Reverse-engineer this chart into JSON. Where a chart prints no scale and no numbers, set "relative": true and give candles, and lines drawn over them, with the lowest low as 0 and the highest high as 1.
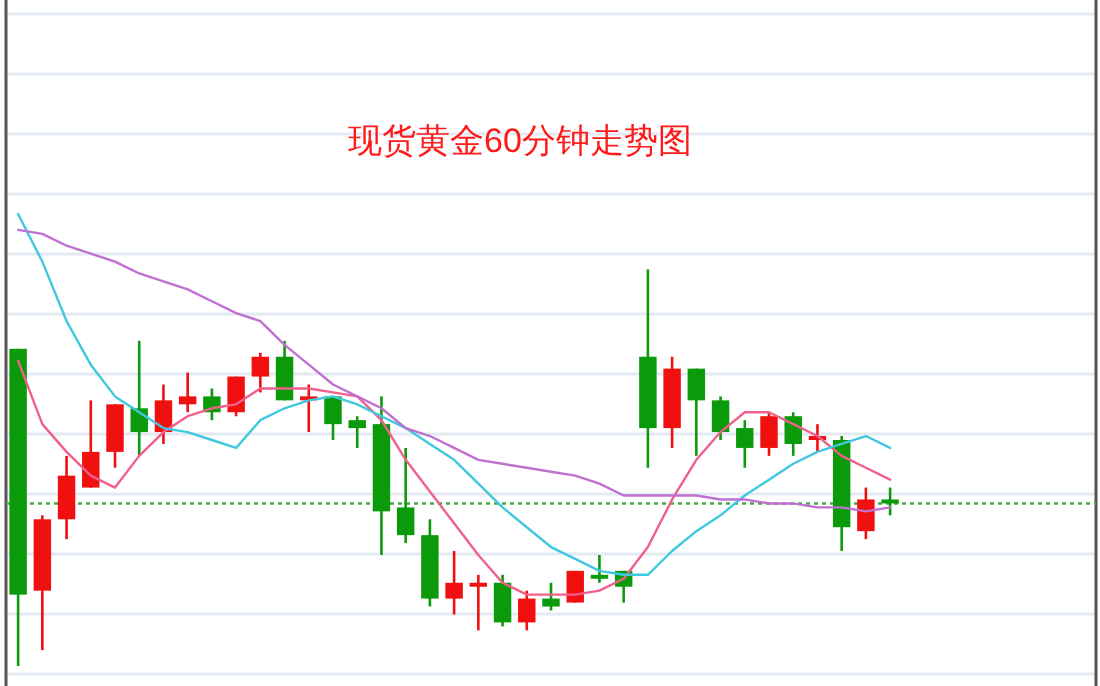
{
  "chart_data": {
    "type": "candlestick",
    "title": "现货黄金60分钟走势图",
    "relative": true,
    "grid": "y",
    "categories": [
      null,
      null,
      null,
      null,
      null,
      null,
      null,
      null,
      null,
      null,
      null,
      null,
      null,
      null,
      null,
      null,
      null,
      null,
      null,
      null,
      null,
      null,
      null,
      null,
      null,
      null,
      null,
      null,
      null,
      null,
      null,
      null,
      null,
      null,
      null,
      null,
      null,
      null,
      null,
      null,
      null,
      null,
      null,
      null,
      null
    ],
    "ohlc": [
      [
        0.8,
        0.8,
        0,
        0.18
      ],
      [
        0.19,
        0.38,
        0.04,
        0.37
      ],
      [
        0.37,
        0.53,
        0.32,
        0.48
      ],
      [
        0.45,
        0.67,
        0.45,
        0.54
      ],
      [
        0.54,
        0.66,
        0.5,
        0.66
      ],
      [
        0.65,
        0.82,
        0.53,
        0.59
      ],
      [
        0.59,
        0.71,
        0.56,
        0.67
      ],
      [
        0.66,
        0.74,
        0.64,
        0.68
      ],
      [
        0.68,
        0.7,
        0.62,
        0.64
      ],
      [
        0.64,
        0.73,
        0.63,
        0.73
      ],
      [
        0.73,
        0.79,
        0.69,
        0.78
      ],
      [
        0.78,
        0.82,
        0.67,
        0.67
      ],
      [
        0.67,
        0.71,
        0.59,
        0.68
      ],
      [
        0.68,
        0.68,
        0.57,
        0.61
      ],
      [
        0.62,
        0.63,
        0.55,
        0.6
      ],
      [
        0.61,
        0.68,
        0.28,
        0.39
      ],
      [
        0.4,
        0.55,
        0.31,
        0.33
      ],
      [
        0.33,
        0.37,
        0.15,
        0.17
      ],
      [
        0.17,
        0.29,
        0.13,
        0.21
      ],
      [
        0.2,
        0.23,
        0.09,
        0.21
      ],
      [
        0.21,
        0.23,
        0.1,
        0.11
      ],
      [
        0.11,
        0.19,
        0.09,
        0.17
      ],
      [
        0.17,
        0.21,
        0.14,
        0.15
      ],
      [
        0.16,
        0.24,
        0.16,
        0.24
      ],
      [
        0.23,
        0.28,
        0.21,
        0.22
      ],
      [
        0.24,
        0.24,
        0.16,
        0.2
      ],
      [
        0.78,
        1.0,
        0.5,
        0.6
      ],
      [
        0.6,
        0.78,
        0.55,
        0.75
      ],
      [
        0.75,
        0.75,
        0.53,
        0.67
      ],
      [
        0.67,
        0.68,
        0.57,
        0.59
      ],
      [
        0.6,
        0.62,
        0.5,
        0.55
      ],
      [
        0.55,
        0.64,
        0.53,
        0.63
      ],
      [
        0.63,
        0.64,
        0.53,
        0.56
      ],
      [
        0.57,
        0.61,
        0.54,
        0.58
      ],
      [
        0.57,
        0.58,
        0.29,
        0.35
      ],
      [
        0.34,
        0.45,
        0.32,
        0.42
      ],
      [
        0.42,
        0.45,
        0.38,
        0.41
      ],
      null,
      null,
      null,
      null,
      null,
      null,
      null,
      null
    ],
    "colors": [
      "#0a9a0a",
      "#f01010",
      "#f01010",
      "#f01010",
      "#f01010",
      "#0a9a0a",
      "#f01010",
      "#f01010",
      "#0a9a0a",
      "#f01010",
      "#f01010",
      "#0a9a0a",
      "#f01010",
      "#0a9a0a",
      "#0a9a0a",
      "#0a9a0a",
      "#0a9a0a",
      "#0a9a0a",
      "#f01010",
      "#f01010",
      "#0a9a0a",
      "#f01010",
      "#0a9a0a",
      "#f01010",
      "#0a9a0a",
      "#0a9a0a",
      "#0a9a0a",
      "#f01010",
      "#0a9a0a",
      "#0a9a0a",
      "#0a9a0a",
      "#f01010",
      "#0a9a0a",
      "#f01010",
      "#0a9a0a",
      "#f01010",
      "#0a9a0a",
      null,
      null,
      null,
      null,
      null,
      null,
      null,
      null
    ],
    "series": [
      {
        "type": "line",
        "color": "#f0608a",
        "values": [
          0.77,
          0.61,
          0.54,
          0.48,
          0.45,
          0.53,
          0.59,
          0.63,
          0.65,
          0.66,
          0.7,
          0.7,
          0.7,
          0.69,
          0.68,
          0.62,
          0.52,
          0.44,
          0.36,
          0.28,
          0.21,
          0.18,
          0.18,
          0.18,
          0.19,
          0.22,
          0.3,
          0.42,
          0.52,
          0.59,
          0.64,
          0.64,
          0.61,
          0.58,
          0.53,
          0.5,
          0.47,
          null,
          null,
          null,
          null,
          null,
          null,
          null,
          null
        ]
      },
      {
        "type": "line",
        "color": "#40c8e0",
        "values": [
          1.14,
          1.02,
          0.87,
          0.76,
          0.68,
          0.64,
          0.6,
          0.59,
          0.57,
          0.55,
          0.62,
          0.65,
          0.67,
          0.68,
          0.66,
          0.63,
          0.6,
          0.56,
          0.52,
          0.46,
          0.4,
          0.35,
          0.3,
          0.27,
          0.24,
          0.23,
          0.23,
          0.29,
          0.34,
          0.38,
          0.43,
          0.47,
          0.51,
          0.54,
          0.56,
          0.58,
          0.55,
          null,
          null,
          null,
          null,
          null,
          null,
          null,
          null
        ]
      },
      {
        "type": "line",
        "color": "#c070d0",
        "values": [
          1.1,
          1.09,
          1.06,
          1.04,
          1.02,
          0.99,
          0.97,
          0.95,
          0.92,
          0.89,
          0.87,
          0.81,
          0.76,
          0.71,
          0.68,
          0.65,
          0.6,
          0.58,
          0.55,
          0.52,
          0.51,
          0.5,
          0.49,
          0.48,
          0.46,
          0.43,
          0.43,
          0.43,
          0.43,
          0.42,
          0.42,
          0.41,
          0.41,
          0.4,
          0.4,
          0.39,
          0.4,
          null,
          null,
          null,
          null,
          null,
          null,
          null,
          null
        ]
      }
    ],
    "ref_lines": [
      {
        "axis": "y",
        "value": 0.41,
        "color": "#44aa44",
        "line_style": "dotted"
      }
    ]
  }
}
